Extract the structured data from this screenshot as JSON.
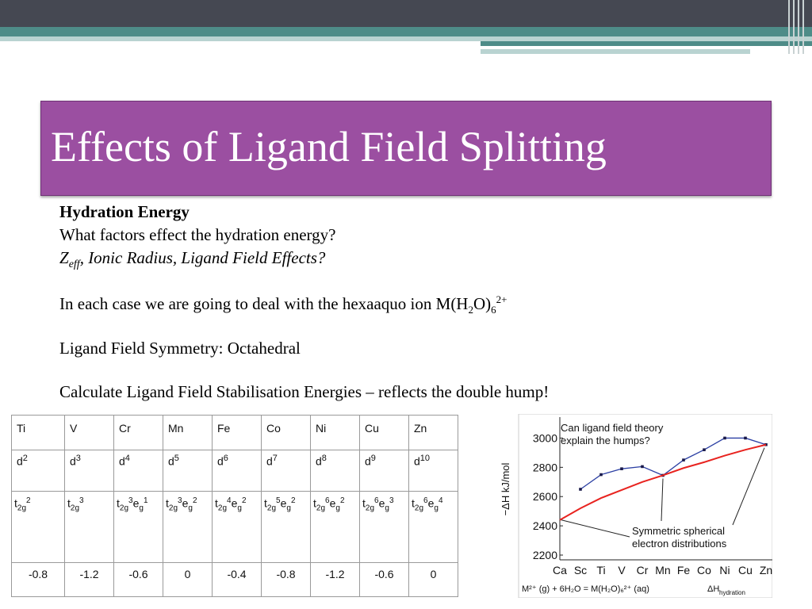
{
  "slide": {
    "title": "Effects of Ligand Field Splitting",
    "heading": "Hydration Energy",
    "question": "What factors effect the hydration energy?",
    "z_letter": "Z",
    "z_sub": "eff",
    "factors_rest": ", Ionic Radius, Ligand Field Effects?",
    "hexa_text": "In each case we are going to deal with the hexaaquo ion M(H",
    "hexa_sub2": "2",
    "hexa_mid": "O)",
    "hexa_sub6": "6",
    "hexa_sup": "2+",
    "symmetry": "Ligand Field Symmetry: Octahedral",
    "calculate": "Calculate Ligand Field Stabilisation Energies – reflects the double hump!"
  },
  "table": {
    "metals": [
      "Ti",
      "V",
      "Cr",
      "Mn",
      "Fe",
      "Co",
      "Ni",
      "Cu",
      "Zn"
    ],
    "d_base": "d",
    "d_counts": [
      "2",
      "3",
      "4",
      "5",
      "6",
      "7",
      "8",
      "9",
      "10"
    ],
    "configs": [
      [
        [
          "t",
          "2g",
          "2"
        ]
      ],
      [
        [
          "t",
          "2g",
          "3"
        ]
      ],
      [
        [
          "t",
          "2g",
          "3"
        ],
        [
          "e",
          "g",
          "1"
        ]
      ],
      [
        [
          "t",
          "2g",
          "3"
        ],
        [
          "e",
          "g",
          "2"
        ]
      ],
      [
        [
          "t",
          "2g",
          "4"
        ],
        [
          "e",
          "g",
          "2"
        ]
      ],
      [
        [
          "t",
          "2g",
          "5"
        ],
        [
          "e",
          "g",
          "2"
        ]
      ],
      [
        [
          "t",
          "2g",
          "6"
        ],
        [
          "e",
          "g",
          "2"
        ]
      ],
      [
        [
          "t",
          "2g",
          "6"
        ],
        [
          "e",
          "g",
          "3"
        ]
      ],
      [
        [
          "t",
          "2g",
          "6"
        ],
        [
          "e",
          "g",
          "4"
        ]
      ]
    ],
    "lfse": [
      "-0.8",
      "-1.2",
      "-0.6",
      "0",
      "-0.4",
      "-0.8",
      "-1.2",
      "-0.6",
      "0"
    ]
  },
  "chart_data": {
    "type": "line",
    "ylabel": "−ΔH kJ/mol",
    "ylim": [
      2200,
      3100
    ],
    "y_ticks": [
      3000,
      2800,
      2600,
      2400,
      2200
    ],
    "categories": [
      "Ca",
      "Sc",
      "Ti",
      "V",
      "Cr",
      "Mn",
      "Fe",
      "Co",
      "Ni",
      "Cu",
      "Zn"
    ],
    "series": [
      {
        "values": [
          null,
          2650,
          2750,
          2790,
          2805,
          2745,
          2850,
          2920,
          3000,
          3000,
          2955
        ],
        "color": "#2b3fa3"
      },
      {
        "values": [
          2440,
          2520,
          2590,
          2645,
          2700,
          2745,
          2795,
          2835,
          2880,
          2920,
          2955
        ],
        "color": "#e8231f"
      }
    ],
    "annotation_top": [
      "Can ligand field theory",
      "explain the humps?"
    ],
    "annotation_bottom": [
      "Symmetric spherical",
      "electron distributions"
    ],
    "footer_left": "M²⁺ (g) + 6H₂O = M(H₂O)₆²⁺ (aq)",
    "footer_dh": "ΔH",
    "footer_sub": "hydration",
    "marker_color": "#1a1a4a"
  }
}
